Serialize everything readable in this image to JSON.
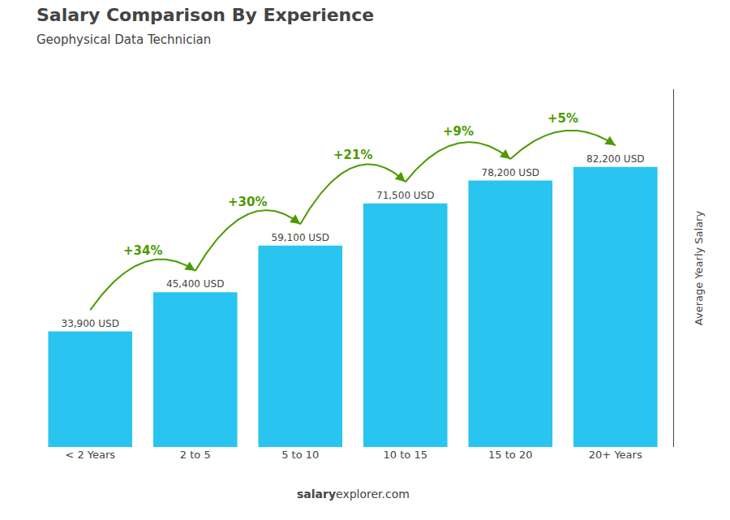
{
  "chart_data": {
    "type": "bar",
    "title": "Salary Comparison By Experience",
    "subtitle": "Geophysical Data Technician",
    "categories": [
      "< 2 Years",
      "2 to 5",
      "5 to 10",
      "10 to 15",
      "15 to 20",
      "20+ Years"
    ],
    "values": [
      33900,
      45400,
      59100,
      71500,
      78200,
      82200
    ],
    "value_labels": [
      "33,900 USD",
      "45,400 USD",
      "59,100 USD",
      "71,500 USD",
      "78,200 USD",
      "82,200 USD"
    ],
    "data_labels": true,
    "color": "#29c5f0",
    "ylabel": "Average Yearly Salary",
    "ylim": [
      0,
      105000
    ],
    "grid": false,
    "tick_labels": "x",
    "annotations": [
      {
        "text": "+34%",
        "color": "#4c9a00"
      },
      {
        "text": "+30%",
        "color": "#4c9a00"
      },
      {
        "text": "+21%",
        "color": "#4c9a00"
      },
      {
        "text": "+9%",
        "color": "#4c9a00"
      },
      {
        "text": "+5%",
        "color": "#4c9a00"
      }
    ],
    "footer": [
      "salary",
      "explorer.com"
    ]
  }
}
